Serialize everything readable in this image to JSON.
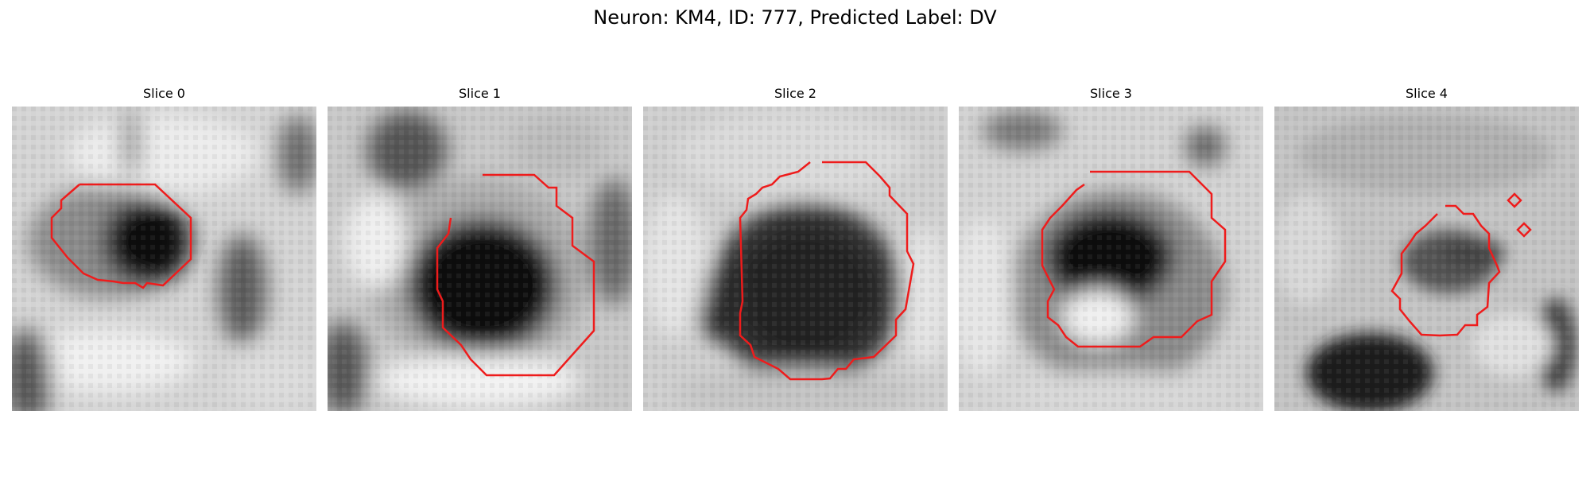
{
  "figure": {
    "title": "Neuron: KM4, ID: 777, Predicted Label: DV"
  },
  "slices": [
    {
      "title": "Slice 0"
    },
    {
      "title": "Slice 1"
    },
    {
      "title": "Slice 2"
    },
    {
      "title": "Slice 3"
    },
    {
      "title": "Slice 4"
    }
  ],
  "style": {
    "contour_color": "#ee1c1c",
    "background": "#ffffff"
  }
}
